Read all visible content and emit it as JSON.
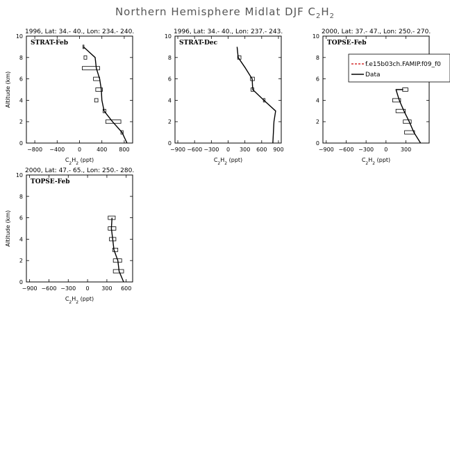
{
  "figure": {
    "title_prefix": "Northern Hemisphere Midlat DJF C",
    "title_sub1": "2",
    "title_mid": "H",
    "title_sub2": "2"
  },
  "legend": {
    "model_label": "f.e15b03ch.FAMIP.f09_f0",
    "data_label": "Data",
    "model_color": "#cc0000",
    "data_color": "#000000"
  },
  "chart_data": [
    {
      "type": "line",
      "title": "1996, Lat: 34.- 40., Lon: 234.- 240.",
      "label": "STRAT-Feb",
      "xlabel": "C2H2 (ppt)",
      "ylabel": "Altitude (km)",
      "xlim": [
        -950,
        950
      ],
      "ylim": [
        0,
        10
      ],
      "xticks": [
        -800,
        -400,
        0,
        400,
        800
      ],
      "yticks": [
        0,
        2,
        4,
        6,
        8,
        10
      ],
      "series": [
        {
          "name": "Data",
          "x": [
            850,
            760,
            590,
            440,
            400,
            390,
            360,
            300,
            280,
            70
          ],
          "y": [
            0,
            1,
            2,
            3,
            4,
            5,
            6,
            7,
            8,
            9
          ]
        }
      ],
      "ranges": [
        {
          "y": 1,
          "xmin": 740,
          "xmax": 780
        },
        {
          "y": 2,
          "xmin": 470,
          "xmax": 740
        },
        {
          "y": 3,
          "xmin": 420,
          "xmax": 470
        },
        {
          "y": 4,
          "xmin": 270,
          "xmax": 330
        },
        {
          "y": 5,
          "xmin": 290,
          "xmax": 410
        },
        {
          "y": 6,
          "xmin": 250,
          "xmax": 360
        },
        {
          "y": 7,
          "xmin": 50,
          "xmax": 360
        },
        {
          "y": 8,
          "xmin": 80,
          "xmax": 130
        },
        {
          "y": 9,
          "xmin": 60,
          "xmax": 80
        }
      ]
    },
    {
      "type": "line",
      "title": "1996, Lat: 34.- 40., Lon: 237.- 243.",
      "label": "STRAT-Dec",
      "xlabel": "C2H2 (ppt)",
      "ylabel": "",
      "xlim": [
        -950,
        950
      ],
      "ylim": [
        0,
        10
      ],
      "xticks": [
        -900,
        -600,
        -300,
        0,
        300,
        600,
        900
      ],
      "yticks": [
        0,
        2,
        4,
        6,
        8,
        10
      ],
      "series": [
        {
          "name": "Data",
          "x": [
            800,
            810,
            820,
            850,
            640,
            440,
            430,
            310,
            180,
            160
          ],
          "y": [
            0,
            1,
            2,
            3,
            4,
            5,
            6,
            7,
            8,
            9
          ]
        }
      ],
      "ranges": [
        {
          "y": 4,
          "xmin": 630,
          "xmax": 660
        },
        {
          "y": 5,
          "xmin": 410,
          "xmax": 460
        },
        {
          "y": 6,
          "xmin": 400,
          "xmax": 470
        },
        {
          "y": 8,
          "xmin": 170,
          "xmax": 230
        }
      ]
    },
    {
      "type": "line",
      "title": "2000, Lat: 37.- 47., Lon: 250.- 270.",
      "label": "TOPSE-Feb",
      "xlabel": "C2H2 (ppt)",
      "ylabel": "",
      "xlim": [
        -950,
        650
      ],
      "ylim": [
        0,
        10
      ],
      "xticks": [
        -900,
        -600,
        -300,
        0,
        300
      ],
      "yticks": [
        0,
        2,
        4,
        6,
        8,
        10
      ],
      "series": [
        {
          "name": "Data",
          "x": [
            520,
            420,
            350,
            270,
            200,
            150,
            260
          ],
          "y": [
            0,
            1,
            2,
            3,
            4,
            5,
            5
          ]
        }
      ],
      "ranges": [
        {
          "y": 1,
          "xmin": 280,
          "xmax": 430
        },
        {
          "y": 2,
          "xmin": 260,
          "xmax": 380
        },
        {
          "y": 3,
          "xmin": 150,
          "xmax": 290
        },
        {
          "y": 4,
          "xmin": 100,
          "xmax": 220
        },
        {
          "y": 5,
          "xmin": 250,
          "xmax": 330
        }
      ]
    },
    {
      "type": "line",
      "title": "2000, Lat: 47.- 65., Lon: 250.- 280.",
      "label": "TOPSE-Feb",
      "xlabel": "C2H2 (ppt)",
      "ylabel": "Altitude (km)",
      "xlim": [
        -950,
        700
      ],
      "ylim": [
        0,
        10
      ],
      "xticks": [
        -900,
        -600,
        -300,
        0,
        300,
        600
      ],
      "yticks": [
        0,
        2,
        4,
        6,
        8,
        10
      ],
      "series": [
        {
          "name": "Data",
          "x": [
            560,
            490,
            470,
            410,
            390,
            370,
            380
          ],
          "y": [
            0,
            1,
            2,
            3,
            4,
            5,
            6
          ]
        }
      ],
      "ranges": [
        {
          "y": 1,
          "xmin": 400,
          "xmax": 560
        },
        {
          "y": 2,
          "xmin": 400,
          "xmax": 530
        },
        {
          "y": 3,
          "xmin": 390,
          "xmax": 470
        },
        {
          "y": 4,
          "xmin": 340,
          "xmax": 440
        },
        {
          "y": 5,
          "xmin": 320,
          "xmax": 440
        },
        {
          "y": 6,
          "xmin": 320,
          "xmax": 430
        }
      ]
    }
  ]
}
